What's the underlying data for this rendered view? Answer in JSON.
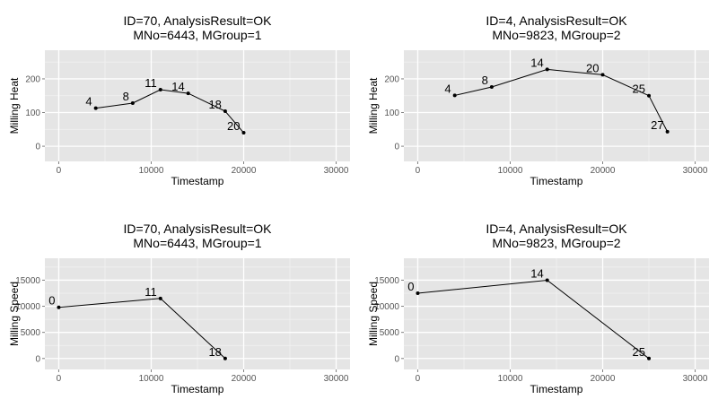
{
  "chart_data": [
    {
      "type": "line",
      "title": [
        "ID=70, AnalysisResult=OK",
        "MNo=6443, MGroup=1"
      ],
      "xlabel": "Timestamp",
      "ylabel": "Milling Heat",
      "xlim": [
        -1500,
        31500
      ],
      "ylim": [
        -45,
        285
      ],
      "xticks": [
        0,
        10000,
        20000,
        30000
      ],
      "yticks": [
        0,
        100,
        200
      ],
      "grid": true,
      "legend": "none",
      "points": [
        {
          "x": 4000,
          "y": 113,
          "label": "4"
        },
        {
          "x": 8000,
          "y": 128,
          "label": "8"
        },
        {
          "x": 11000,
          "y": 168,
          "label": "11"
        },
        {
          "x": 14000,
          "y": 157,
          "label": "14"
        },
        {
          "x": 18000,
          "y": 104,
          "label": "18"
        },
        {
          "x": 20000,
          "y": 40,
          "label": "20"
        }
      ]
    },
    {
      "type": "line",
      "title": [
        "ID=4, AnalysisResult=OK",
        "MNo=9823, MGroup=2"
      ],
      "xlabel": "Timestamp",
      "ylabel": "Milling Heat",
      "xlim": [
        -1500,
        31500
      ],
      "ylim": [
        -45,
        285
      ],
      "xticks": [
        0,
        10000,
        20000,
        30000
      ],
      "yticks": [
        0,
        100,
        200
      ],
      "grid": true,
      "legend": "none",
      "points": [
        {
          "x": 4000,
          "y": 151,
          "label": "4"
        },
        {
          "x": 8000,
          "y": 176,
          "label": "8"
        },
        {
          "x": 14000,
          "y": 228,
          "label": "14"
        },
        {
          "x": 20000,
          "y": 212,
          "label": "20"
        },
        {
          "x": 25000,
          "y": 150,
          "label": "25"
        },
        {
          "x": 27000,
          "y": 43,
          "label": "27"
        }
      ]
    },
    {
      "type": "line",
      "title": [
        "ID=70, AnalysisResult=OK",
        "MNo=6443, MGroup=1"
      ],
      "xlabel": "Timestamp",
      "ylabel": "Milling Speed",
      "xlim": [
        -1500,
        31500
      ],
      "ylim": [
        -2100,
        19200
      ],
      "xticks": [
        0,
        10000,
        20000,
        30000
      ],
      "yticks": [
        0,
        5000,
        10000,
        15000
      ],
      "grid": true,
      "legend": "none",
      "points": [
        {
          "x": 0,
          "y": 9800,
          "label": "0"
        },
        {
          "x": 11000,
          "y": 11500,
          "label": "11"
        },
        {
          "x": 18000,
          "y": 0,
          "label": "18"
        }
      ]
    },
    {
      "type": "line",
      "title": [
        "ID=4, AnalysisResult=OK",
        "MNo=9823, MGroup=2"
      ],
      "xlabel": "Timestamp",
      "ylabel": "Milling Speed",
      "xlim": [
        -1500,
        31500
      ],
      "ylim": [
        -2100,
        19200
      ],
      "xticks": [
        0,
        10000,
        20000,
        30000
      ],
      "yticks": [
        0,
        5000,
        10000,
        15000
      ],
      "grid": true,
      "legend": "none",
      "points": [
        {
          "x": 0,
          "y": 12500,
          "label": "0"
        },
        {
          "x": 14000,
          "y": 15000,
          "label": "14"
        },
        {
          "x": 25000,
          "y": 0,
          "label": "25"
        }
      ]
    }
  ],
  "colors": {
    "panel_background": "#e5e5e5",
    "grid_major": "#ffffff",
    "grid_minor": "#f2f2f2",
    "line": "#000000",
    "tick_label": "#555555"
  }
}
